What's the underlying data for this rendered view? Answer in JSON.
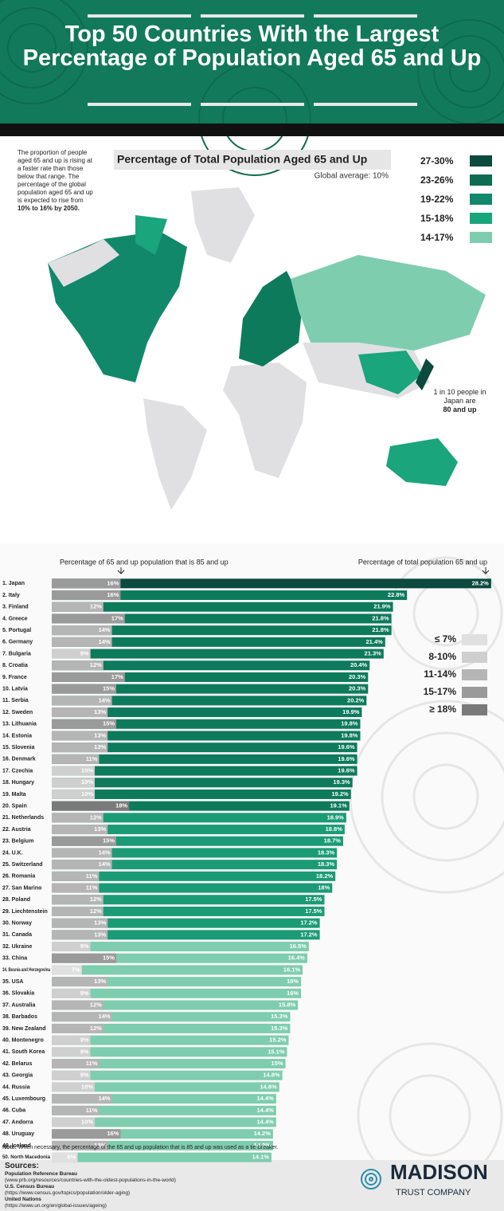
{
  "header": {
    "title": "Top 50 Countries With the Largest Percentage of Population Aged 65 and Up"
  },
  "map": {
    "intro": "The proportion of people aged 65 and up is rising at a faster rate than those below that range. The percentage of the global population aged 65 and up is expected to rise from",
    "intro_bold": "10% to 16% by 2050.",
    "title": "Percentage of Total Population Aged 65 and Up",
    "subtitle": "Global average: 10%",
    "legend": [
      {
        "label": "27-30%",
        "color": "#0b4a3c"
      },
      {
        "label": "23-26%",
        "color": "#0e6b52"
      },
      {
        "label": "19-22%",
        "color": "#12886a"
      },
      {
        "label": "15-18%",
        "color": "#1aa57c"
      },
      {
        "label": "14-17%",
        "color": "#7fcdaf"
      }
    ],
    "annotation": "1 in 10 people in Japan are",
    "annotation_bold": "80 and up"
  },
  "chart_data": {
    "type": "bar",
    "orientation": "horizontal",
    "left_label": "Percentage of 65 and up population that is 85 and up",
    "right_label": "Percentage of total population 65 and up",
    "categories": [
      "1. Japan",
      "2. Italy",
      "3. Finland",
      "4. Greece",
      "5. Portugal",
      "6. Germany",
      "7. Bulgaria",
      "8. Croatia",
      "9. France",
      "10. Latvia",
      "11. Serbia",
      "12. Sweden",
      "13. Lithuania",
      "14. Estonia",
      "15. Slovenia",
      "16. Denmark",
      "17. Czechia",
      "18. Hungary",
      "19. Malta",
      "20. Spain",
      "21. Netherlands",
      "22. Austria",
      "23. Belgium",
      "24. U.K.",
      "25. Switzerland",
      "26. Romania",
      "27. San Marino",
      "28. Poland",
      "29. Liechtenstein",
      "30. Norway",
      "31. Canada",
      "32. Ukraine",
      "33. China",
      "34. Bosnia and Herzegovina",
      "35. USA",
      "36. Slovakia",
      "37. Australia",
      "38. Barbados",
      "39. New Zealand",
      "40. Montenegro",
      "41. South Korea",
      "42. Belarus",
      "43. Georgia",
      "44. Russia",
      "45. Luxembourg",
      "46. Cuba",
      "47. Andorra",
      "48. Uruguay",
      "49. Iceland",
      "50. North Macedonia"
    ],
    "series": [
      {
        "name": "Percentage of total population 65 and up",
        "values": [
          28.2,
          22.8,
          21.9,
          21.8,
          21.8,
          21.4,
          21.3,
          20.4,
          20.3,
          20.3,
          20.2,
          19.9,
          19.8,
          19.8,
          19.6,
          19.6,
          19.6,
          19.3,
          19.2,
          19.1,
          18.9,
          18.8,
          18.7,
          18.3,
          18.3,
          18.2,
          18,
          17.5,
          17.5,
          17.2,
          17.2,
          16.5,
          16.4,
          16.1,
          16,
          16,
          15.8,
          15.3,
          15.3,
          15.2,
          15.1,
          15,
          14.8,
          14.6,
          14.4,
          14.4,
          14.4,
          14.2,
          14.2,
          14.1
        ],
        "value_labels": [
          "28.2%",
          "22.8%",
          "21.9%",
          "21.8%",
          "21.8%",
          "21.4%",
          "21.3%",
          "20.4%",
          "20.3%",
          "20.3%",
          "20.2%",
          "19.9%",
          "19.8%",
          "19.8%",
          "19.6%",
          "19.6%",
          "19.6%",
          "19.3%",
          "19.2%",
          "19.1%",
          "18.9%",
          "18.8%",
          "18.7%",
          "18.3%",
          "18.3%",
          "18.2%",
          "18%",
          "17.5%",
          "17.5%",
          "17.2%",
          "17.2%",
          "16.5%",
          "16.4%",
          "16.1%",
          "16%",
          "16%",
          "15.8%",
          "15.3%",
          "15.3%",
          "15.2%",
          "15.1%",
          "15%",
          "14.8%",
          "14.6%",
          "14.4%",
          "14.4%",
          "14.4%",
          "14.2%",
          "14.2%",
          "14.1%"
        ],
        "colors": [
          "#0b4a3c",
          "#0d7a5c",
          "#0d7a5c",
          "#0d7a5c",
          "#0d7a5c",
          "#0d7a5c",
          "#0d7a5c",
          "#0d7a5c",
          "#0d7a5c",
          "#0d7a5c",
          "#0d7a5c",
          "#0d7a5c",
          "#0d7a5c",
          "#0d7a5c",
          "#0d7a5c",
          "#0d7a5c",
          "#0d7a5c",
          "#0d7a5c",
          "#0d7a5c",
          "#0d7a5c",
          "#1a9b76",
          "#1a9b76",
          "#1a9b76",
          "#1a9b76",
          "#1a9b76",
          "#1a9b76",
          "#1a9b76",
          "#1a9b76",
          "#1a9b76",
          "#1a9b76",
          "#1a9b76",
          "#7ecdae",
          "#7ecdae",
          "#7ecdae",
          "#7ecdae",
          "#7ecdae",
          "#7ecdae",
          "#7ecdae",
          "#7ecdae",
          "#7ecdae",
          "#7ecdae",
          "#7ecdae",
          "#7ecdae",
          "#7ecdae",
          "#7ecdae",
          "#7ecdae",
          "#7ecdae",
          "#7ecdae",
          "#7ecdae",
          "#7ecdae"
        ]
      },
      {
        "name": "Percentage of 65 and up population that is 85 and up",
        "values": [
          16,
          16,
          12,
          17,
          14,
          14,
          9,
          12,
          17,
          15,
          14,
          13,
          15,
          13,
          13,
          11,
          10,
          10,
          10,
          18,
          12,
          13,
          15,
          14,
          14,
          11,
          11,
          12,
          12,
          13,
          13,
          9,
          15,
          7,
          13,
          9,
          12,
          14,
          12,
          9,
          9,
          11,
          9,
          10,
          14,
          11,
          10,
          16,
          13,
          6
        ],
        "value_labels": [
          "16%",
          "16%",
          "12%",
          "17%",
          "14%",
          "14%",
          "9%",
          "12%",
          "17%",
          "15%",
          "14%",
          "13%",
          "15%",
          "13%",
          "13%",
          "11%",
          "10%",
          "10%",
          "10%",
          "18%",
          "12%",
          "13%",
          "15%",
          "14%",
          "14%",
          "11%",
          "11%",
          "12%",
          "12%",
          "13%",
          "13%",
          "9%",
          "15%",
          "7%",
          "13%",
          "9%",
          "12%",
          "14%",
          "12%",
          "9%",
          "9%",
          "11%",
          "9%",
          "10%",
          "14%",
          "11%",
          "10%",
          "16%",
          "13%",
          "6%"
        ],
        "colors": [
          "#9a9a9a",
          "#9a9a9a",
          "#b5b5b5",
          "#9a9a9a",
          "#b5b5b5",
          "#b5b5b5",
          "#cfcfcf",
          "#b5b5b5",
          "#9a9a9a",
          "#9a9a9a",
          "#b5b5b5",
          "#b5b5b5",
          "#9a9a9a",
          "#b5b5b5",
          "#b5b5b5",
          "#b5b5b5",
          "#cfcfcf",
          "#cfcfcf",
          "#cfcfcf",
          "#7a7a7a",
          "#b5b5b5",
          "#b5b5b5",
          "#9a9a9a",
          "#b5b5b5",
          "#b5b5b5",
          "#b5b5b5",
          "#b5b5b5",
          "#b5b5b5",
          "#b5b5b5",
          "#b5b5b5",
          "#b5b5b5",
          "#cfcfcf",
          "#9a9a9a",
          "#e0e0e0",
          "#b5b5b5",
          "#cfcfcf",
          "#b5b5b5",
          "#b5b5b5",
          "#b5b5b5",
          "#cfcfcf",
          "#cfcfcf",
          "#b5b5b5",
          "#cfcfcf",
          "#cfcfcf",
          "#b5b5b5",
          "#b5b5b5",
          "#cfcfcf",
          "#9a9a9a",
          "#b5b5b5",
          "#e0e0e0"
        ]
      }
    ],
    "legend": [
      {
        "label": "≤ 7%",
        "color": "#e0e0e0"
      },
      {
        "label": "8-10%",
        "color": "#cfcfcf"
      },
      {
        "label": "11-14%",
        "color": "#b5b5b5"
      },
      {
        "label": "15-17%",
        "color": "#9a9a9a"
      },
      {
        "label": "≥ 18%",
        "color": "#7a7a7a"
      }
    ],
    "note_label": "Note:",
    "note": "When necessary, the percentage of the 65 and up population that is 85 and up was used as a tie-breaker."
  },
  "footer": {
    "sources_title": "Sources:",
    "sources": [
      {
        "name": "Population Reference Bureau",
        "url": "(www.prb.org/resources/countries-with-the-oldest-populations-in-the-world)"
      },
      {
        "name": "U.S. Census Bureau",
        "url": "(https://www.census.gov/topics/population/older-aging)"
      },
      {
        "name": "United Nations",
        "url": "(https://www.un.org/en/global-issues/ageing)"
      }
    ],
    "logo_name": "MADISON",
    "logo_sub": "TRUST COMPANY"
  }
}
